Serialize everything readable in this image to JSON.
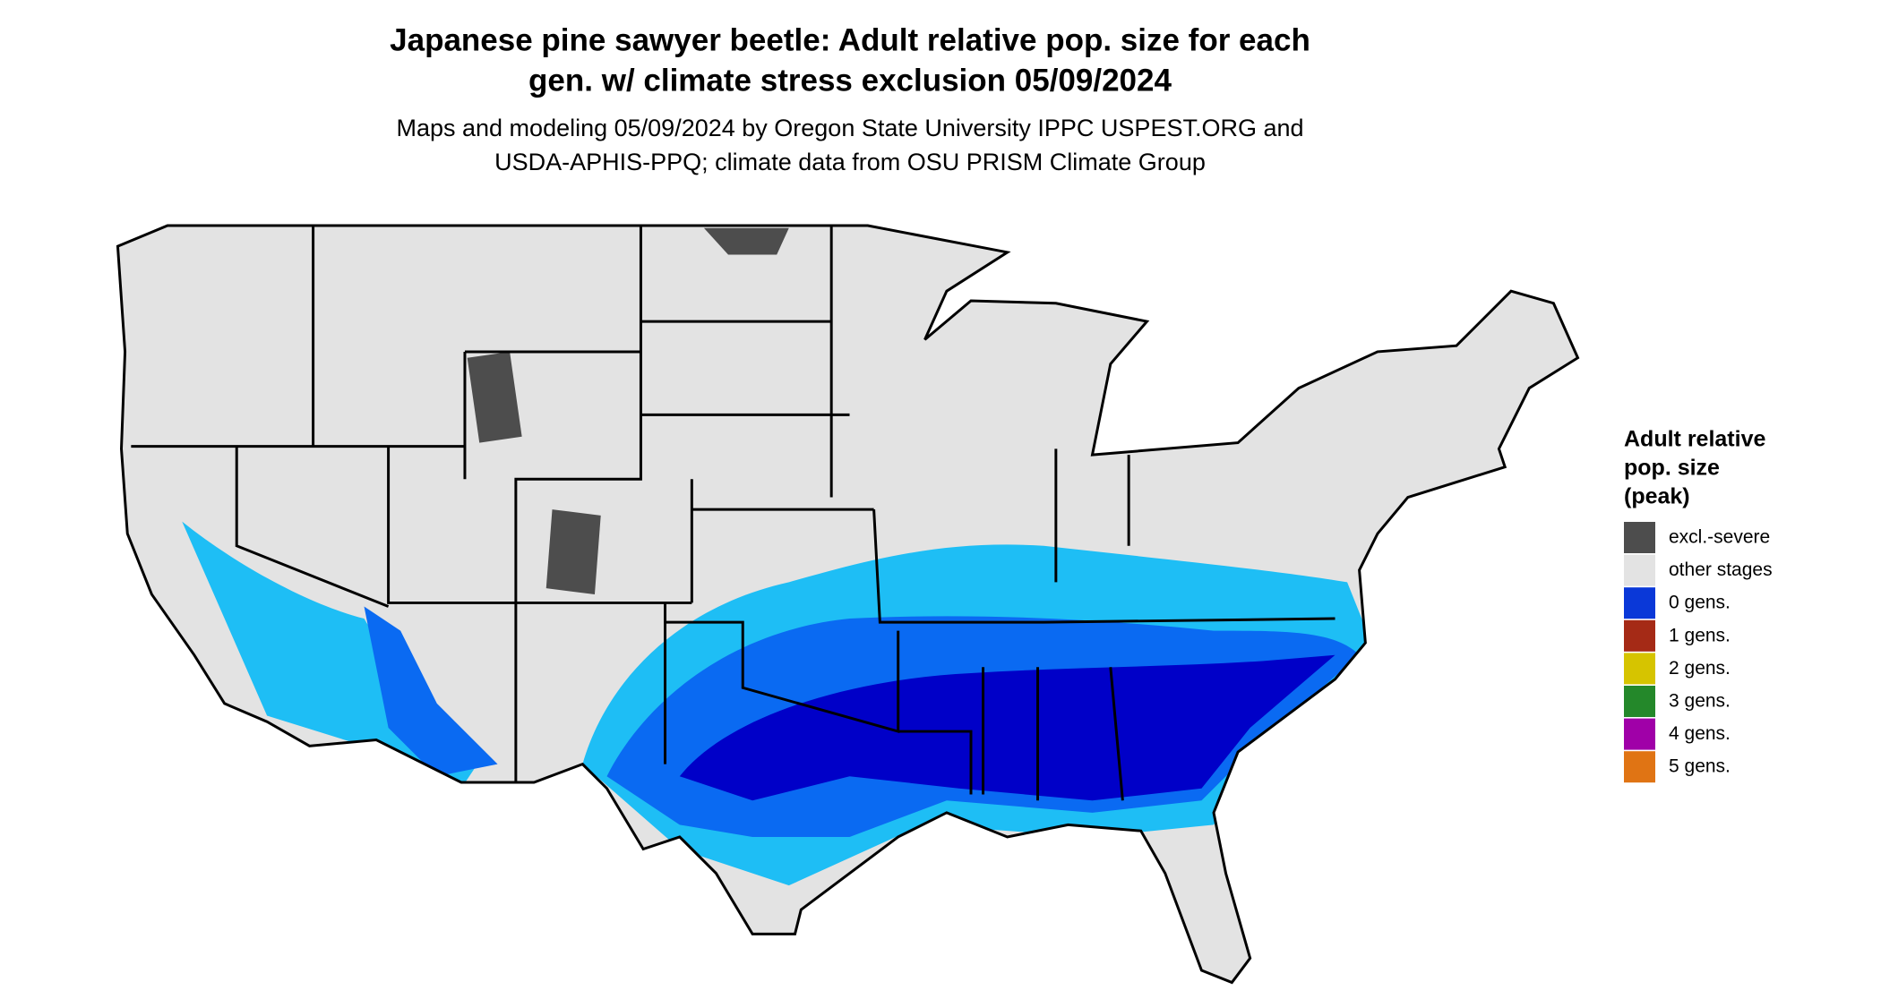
{
  "title": [
    "Japanese pine sawyer beetle: Adult relative pop. size for each",
    "gen. w/ climate stress exclusion 05/09/2024"
  ],
  "subtitle": [
    "Maps and modeling 05/09/2024 by Oregon State University IPPC USPEST.ORG and",
    "USDA-APHIS-PPQ; climate data from OSU PRISM Climate Group"
  ],
  "legend": {
    "title": [
      "Adult relative",
      "pop. size",
      "(peak)"
    ],
    "items": [
      {
        "label": "excl.-severe",
        "color": "#4d4d4d"
      },
      {
        "label": "other stages",
        "color": "#e3e3e3"
      },
      {
        "label": "0 gens.",
        "color": "#0a38d8"
      },
      {
        "label": "1 gens.",
        "color": "#a52a16"
      },
      {
        "label": "2 gens.",
        "color": "#d6c400"
      },
      {
        "label": "3 gens.",
        "color": "#24882a"
      },
      {
        "label": "4 gens.",
        "color": "#a000a8"
      },
      {
        "label": "5 gens.",
        "color": "#e07414"
      }
    ]
  }
}
